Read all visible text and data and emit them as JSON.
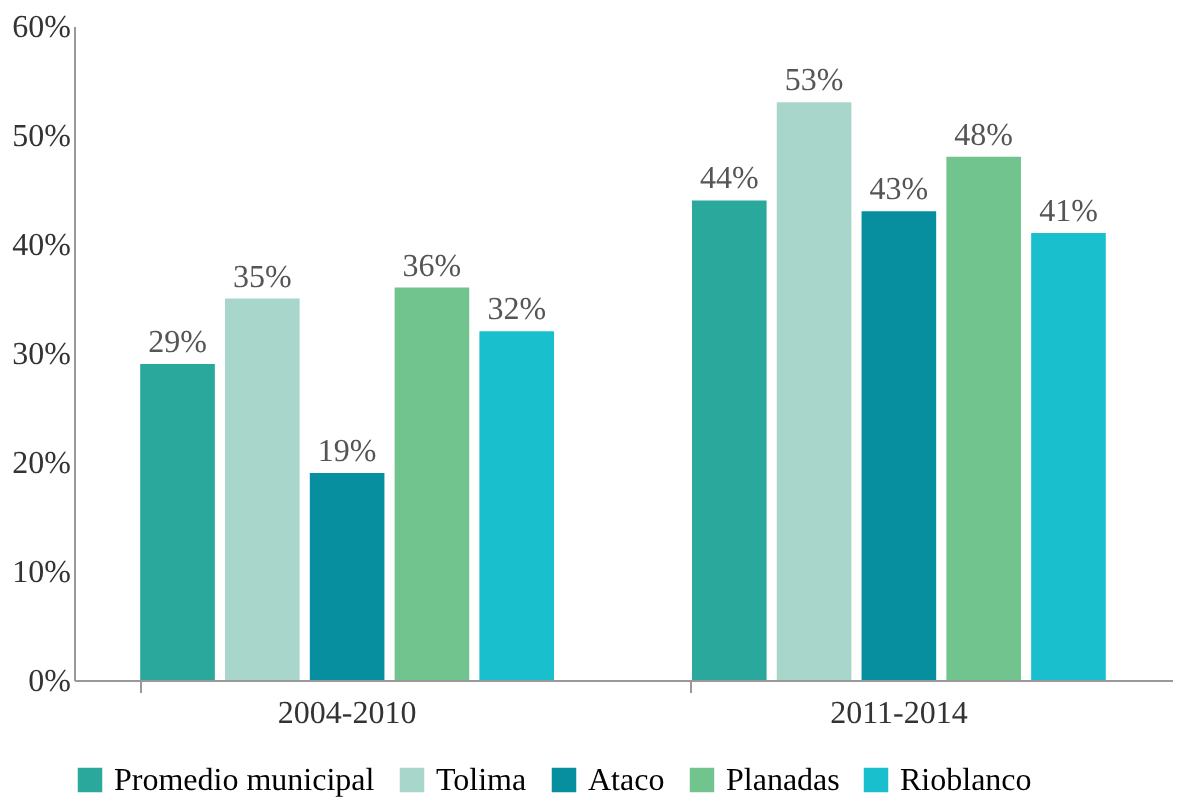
{
  "chart_data": {
    "type": "bar",
    "categories": [
      "2004-2010",
      "2011-2014"
    ],
    "series": [
      {
        "name": "Promedio municipal",
        "color": "#2aa89b",
        "values": [
          29,
          44
        ],
        "value_labels": [
          "29%",
          "44%"
        ]
      },
      {
        "name": "Tolima",
        "color": "#a9d6ca",
        "values": [
          35,
          53
        ],
        "value_labels": [
          "35%",
          "53%"
        ]
      },
      {
        "name": "Ataco",
        "color": "#078f9f",
        "values": [
          19,
          43
        ],
        "value_labels": [
          "19%",
          "43%"
        ]
      },
      {
        "name": "Planadas",
        "color": "#72c48f",
        "values": [
          36,
          48
        ],
        "value_labels": [
          "36%",
          "48%"
        ]
      },
      {
        "name": "Rioblanco",
        "color": "#19bfcc",
        "values": [
          32,
          41
        ],
        "value_labels": [
          "32%",
          "41%"
        ]
      }
    ],
    "ylim": [
      0,
      60
    ],
    "yticks": [
      {
        "value": 0,
        "label": "0%"
      },
      {
        "value": 10,
        "label": "10%"
      },
      {
        "value": 20,
        "label": "20%"
      },
      {
        "value": 30,
        "label": "30%"
      },
      {
        "value": 40,
        "label": "40%"
      },
      {
        "value": 50,
        "label": "50%"
      },
      {
        "value": 60,
        "label": "60%"
      }
    ],
    "grid": false,
    "legend": "bottom"
  }
}
